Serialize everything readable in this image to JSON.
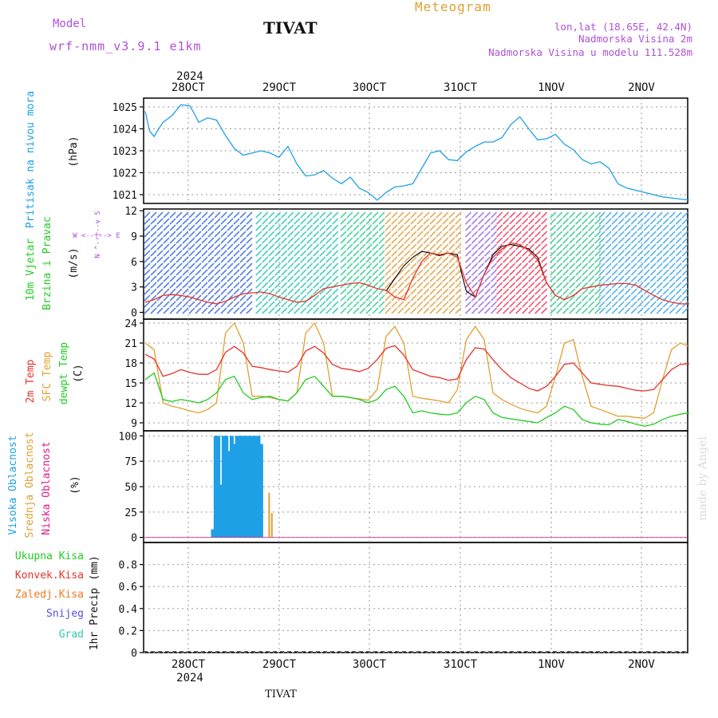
{
  "header": {
    "model_label": "Model",
    "model_name": "wrf-nmm_v3.9.1  e1km",
    "station": "TIVAT",
    "product": "Meteogram",
    "coords": "lon,lat (18.65E, 42.4N)",
    "elevation": "Nadmorska Visina 2m",
    "model_elevation": "Nadmorska Visina u modelu 111.528m"
  },
  "footer": {
    "station": "TIVAT",
    "credit": "made by Angel"
  },
  "time_axis": {
    "year_label": "2024",
    "days": [
      "28OCT",
      "29OCT",
      "30OCT",
      "31OCT",
      "1NOV",
      "2NOV"
    ],
    "x_range_days": [
      0,
      6.1
    ]
  },
  "colors": {
    "pressure": "#1ea0e6",
    "wind_gust": "#000000",
    "wind_speed": "#e8322a",
    "temp_2m": "#e8322a",
    "temp_sfc": "#e0a030",
    "temp_dew": "#22cc22",
    "cloud_high": "#1ea0e6",
    "cloud_mid": "#e0a030",
    "cloud_low": "#e01e8c",
    "precip_total": "#22cc22",
    "precip_conv": "#e8322a",
    "precip_frozen": "#f07a20",
    "precip_snow": "#5050e0",
    "precip_hail": "#30c8b0",
    "grid": "#999999",
    "purple": "#b050d8"
  },
  "chart_data": [
    {
      "type": "line",
      "panel": "pressure",
      "ylabel": "Pritisak na nivou mora",
      "unit": "(hPa)",
      "yticks": [
        "1021",
        "1022",
        "1023",
        "1024",
        "1025"
      ],
      "ylim": [
        1020.6,
        1025.4
      ],
      "series": [
        {
          "x": [
            0,
            0.05,
            0.1,
            0.15,
            0.2,
            0.3,
            0.4,
            0.5,
            0.55,
            0.6,
            0.7,
            0.8,
            0.9,
            1.0,
            1.1,
            1.2,
            1.3,
            1.4,
            1.5,
            1.6,
            1.7,
            1.8,
            1.9,
            2.0,
            2.1,
            2.2,
            2.3,
            2.4,
            2.5,
            2.6,
            2.7,
            2.8,
            2.9,
            3.0,
            3.1,
            3.2,
            3.3,
            3.4,
            3.5,
            3.6,
            3.7,
            3.8,
            3.9,
            4.0,
            4.1,
            4.2,
            4.3,
            4.4,
            4.5,
            4.6,
            4.7,
            4.8,
            4.9,
            5.0,
            5.1,
            5.2,
            5.3,
            5.4,
            5.5,
            5.6,
            5.7,
            5.8,
            5.9,
            6.0,
            6.1
          ],
          "y": [
            1024.8,
            1023.9,
            1023.65,
            1024.0,
            1024.3,
            1024.6,
            1025.1,
            1025.05,
            1024.7,
            1024.3,
            1024.5,
            1024.4,
            1023.7,
            1023.1,
            1022.8,
            1022.9,
            1023.0,
            1022.9,
            1022.7,
            1023.2,
            1022.4,
            1021.85,
            1021.9,
            1022.1,
            1021.75,
            1021.5,
            1021.8,
            1021.3,
            1021.1,
            1020.75,
            1021.1,
            1021.35,
            1021.4,
            1021.5,
            1022.2,
            1022.9,
            1023.0,
            1022.6,
            1022.55,
            1022.95,
            1023.2,
            1023.4,
            1023.4,
            1023.6,
            1024.2,
            1024.55,
            1024.0,
            1023.5,
            1023.55,
            1023.75,
            1023.3,
            1023.05,
            1022.6,
            1022.4,
            1022.5,
            1022.2,
            1021.5,
            1021.3,
            1021.2,
            1021.1,
            1021.0,
            1020.9,
            1020.85,
            1020.8,
            1020.75
          ]
        }
      ]
    },
    {
      "type": "line",
      "panel": "wind",
      "ylabel": [
        "10m Vjetar",
        "Brzina i Pravac"
      ],
      "unit": "(m/s)",
      "compass": "W <--|--> E",
      "compass_v": "N ^--|--v S",
      "yticks": [
        "0",
        "3",
        "6",
        "9",
        "12"
      ],
      "ylim": [
        -0.8,
        12.2
      ],
      "series": [
        {
          "name": "speed",
          "x": [
            0,
            0.1,
            0.2,
            0.3,
            0.4,
            0.5,
            0.6,
            0.7,
            0.8,
            0.9,
            1.0,
            1.1,
            1.2,
            1.3,
            1.4,
            1.5,
            1.6,
            1.7,
            1.8,
            1.9,
            2.0,
            2.1,
            2.2,
            2.3,
            2.4,
            2.5,
            2.6,
            2.7,
            2.8,
            2.9,
            3.0,
            3.1,
            3.2,
            3.3,
            3.4,
            3.5,
            3.6,
            3.7,
            3.8,
            3.9,
            4.0,
            4.1,
            4.2,
            4.3,
            4.4,
            4.5,
            4.6,
            4.7,
            4.8,
            4.9,
            5.0,
            5.1,
            5.2,
            5.3,
            5.4,
            5.5,
            5.6,
            5.7,
            5.8,
            5.9,
            6.0,
            6.1
          ],
          "y": [
            1.2,
            1.5,
            2.0,
            2.1,
            2.0,
            1.8,
            1.5,
            1.2,
            1.0,
            1.3,
            1.8,
            2.2,
            2.3,
            2.4,
            2.2,
            1.8,
            1.5,
            1.2,
            1.3,
            2.0,
            2.8,
            3.0,
            3.2,
            3.4,
            3.5,
            3.2,
            2.8,
            2.6,
            1.8,
            1.5,
            4.0,
            6.0,
            7.0,
            6.8,
            7.0,
            6.5,
            3.5,
            1.8,
            4.5,
            6.5,
            7.5,
            8.2,
            8.0,
            7.3,
            6.2,
            3.5,
            2.0,
            1.5,
            2.0,
            2.8,
            3.0,
            3.2,
            3.3,
            3.4,
            3.4,
            3.2,
            2.6,
            2.0,
            1.5,
            1.2,
            1.0,
            1.0
          ]
        },
        {
          "name": "gust",
          "x": [
            2.7,
            2.8,
            2.9,
            3.0,
            3.1,
            3.2,
            3.3,
            3.4,
            3.5,
            3.55,
            3.6,
            3.7,
            3.8,
            3.9,
            4.0,
            4.1,
            4.2,
            4.3,
            4.4,
            4.5,
            4.6
          ],
          "y": [
            2.5,
            4.0,
            5.5,
            6.5,
            7.2,
            7.0,
            6.7,
            7.0,
            6.8,
            4.5,
            2.5,
            1.8,
            4.5,
            6.8,
            7.8,
            8.0,
            7.8,
            7.5,
            6.5,
            3.5,
            2.0
          ]
        }
      ]
    },
    {
      "type": "line",
      "panel": "temperature",
      "ylabel": [
        "2m Temp",
        "SFC Temp",
        "dewpt Temp"
      ],
      "unit": "(C)",
      "yticks": [
        "9",
        "12",
        "15",
        "18",
        "21",
        "24"
      ],
      "ylim": [
        7.8,
        24.6
      ],
      "series": [
        {
          "name": "2m Temp",
          "x": [
            0,
            0.1,
            0.2,
            0.3,
            0.4,
            0.5,
            0.6,
            0.7,
            0.8,
            0.9,
            1.0,
            1.1,
            1.2,
            1.3,
            1.4,
            1.5,
            1.6,
            1.7,
            1.8,
            1.9,
            2.0,
            2.1,
            2.2,
            2.3,
            2.4,
            2.5,
            2.6,
            2.7,
            2.8,
            2.9,
            3.0,
            3.1,
            3.2,
            3.3,
            3.4,
            3.5,
            3.6,
            3.7,
            3.8,
            3.9,
            4.0,
            4.1,
            4.2,
            4.3,
            4.4,
            4.5,
            4.6,
            4.7,
            4.8,
            4.9,
            5.0,
            5.1,
            5.2,
            5.3,
            5.4,
            5.5,
            5.6,
            5.7,
            5.8,
            5.9,
            6.0,
            6.1
          ],
          "y": [
            19.3,
            18.6,
            16.0,
            16.4,
            17.0,
            16.6,
            16.3,
            16.3,
            17.0,
            19.6,
            20.5,
            19.5,
            17.5,
            17.3,
            17.0,
            16.8,
            16.6,
            17.5,
            19.8,
            20.5,
            19.5,
            17.8,
            17.2,
            17.0,
            16.7,
            17.2,
            18.5,
            20.2,
            20.6,
            19.2,
            17.0,
            16.5,
            16.0,
            15.8,
            15.4,
            15.6,
            18.5,
            20.3,
            20.1,
            18.5,
            17.0,
            15.8,
            15.0,
            14.2,
            13.8,
            14.5,
            16.0,
            17.8,
            18.0,
            16.5,
            15.0,
            14.8,
            14.6,
            14.5,
            14.2,
            13.9,
            13.8,
            14.0,
            15.5,
            17.0,
            17.8,
            17.9
          ]
        },
        {
          "name": "SFC Temp",
          "x": [
            0,
            0.1,
            0.2,
            0.3,
            0.4,
            0.5,
            0.6,
            0.7,
            0.8,
            0.9,
            1.0,
            1.1,
            1.2,
            1.3,
            1.4,
            1.5,
            1.6,
            1.7,
            1.8,
            1.9,
            2.0,
            2.1,
            2.2,
            2.3,
            2.4,
            2.5,
            2.6,
            2.7,
            2.8,
            2.9,
            3.0,
            3.1,
            3.2,
            3.3,
            3.4,
            3.5,
            3.6,
            3.7,
            3.8,
            3.9,
            4.0,
            4.1,
            4.2,
            4.3,
            4.4,
            4.5,
            4.6,
            4.7,
            4.8,
            4.9,
            5.0,
            5.1,
            5.2,
            5.3,
            5.4,
            5.5,
            5.6,
            5.7,
            5.8,
            5.9,
            6.0,
            6.1
          ],
          "y": [
            21.0,
            20.0,
            12.0,
            11.5,
            11.2,
            10.8,
            10.5,
            11.0,
            12.0,
            22.5,
            24.0,
            21.0,
            13.0,
            13.0,
            12.8,
            12.5,
            12.3,
            13.5,
            22.5,
            24.0,
            21.0,
            13.0,
            13.0,
            12.8,
            12.6,
            12.4,
            14.0,
            22.0,
            23.5,
            21.0,
            13.0,
            12.7,
            12.5,
            12.3,
            12.0,
            14.0,
            21.5,
            23.5,
            21.5,
            13.5,
            12.5,
            11.8,
            11.2,
            10.8,
            10.5,
            11.5,
            16.0,
            21.0,
            21.5,
            16.0,
            11.5,
            11.0,
            10.5,
            10.0,
            10.0,
            9.8,
            9.7,
            10.5,
            15.5,
            20.0,
            21.0,
            20.5
          ]
        },
        {
          "name": "dewpt Temp",
          "x": [
            0,
            0.1,
            0.2,
            0.3,
            0.4,
            0.5,
            0.6,
            0.7,
            0.8,
            0.9,
            1.0,
            1.1,
            1.2,
            1.3,
            1.4,
            1.5,
            1.6,
            1.7,
            1.8,
            1.9,
            2.0,
            2.1,
            2.2,
            2.3,
            2.4,
            2.5,
            2.6,
            2.7,
            2.8,
            2.9,
            3.0,
            3.1,
            3.2,
            3.3,
            3.4,
            3.5,
            3.6,
            3.7,
            3.8,
            3.9,
            4.0,
            4.1,
            4.2,
            4.3,
            4.4,
            4.5,
            4.6,
            4.7,
            4.8,
            4.9,
            5.0,
            5.1,
            5.2,
            5.3,
            5.4,
            5.5,
            5.6,
            5.7,
            5.8,
            5.9,
            6.0,
            6.1
          ],
          "y": [
            15.5,
            16.5,
            12.5,
            12.2,
            12.5,
            12.3,
            12.0,
            12.5,
            13.5,
            15.5,
            16.0,
            13.5,
            12.5,
            12.8,
            13.0,
            12.5,
            12.3,
            13.5,
            15.5,
            16.0,
            14.5,
            13.0,
            13.0,
            12.8,
            12.5,
            12.0,
            12.5,
            14.0,
            14.5,
            13.0,
            10.5,
            10.8,
            10.5,
            10.3,
            10.2,
            10.5,
            12.0,
            13.0,
            12.5,
            10.5,
            9.8,
            9.6,
            9.4,
            9.2,
            9.0,
            9.8,
            10.5,
            11.5,
            11.0,
            9.5,
            9.0,
            8.8,
            8.7,
            9.5,
            9.2,
            8.8,
            8.5,
            8.8,
            9.5,
            10.0,
            10.3,
            10.5
          ]
        }
      ]
    },
    {
      "type": "bar",
      "panel": "cloud",
      "ylabel": [
        "Visoka Oblacnost",
        "Srednja Oblacnost",
        "Niska Oblacnost"
      ],
      "unit": "(%)",
      "yticks": [
        "0",
        "25",
        "50",
        "75",
        "100"
      ],
      "ylim": [
        -5,
        105
      ],
      "series": [
        {
          "name": "Visoka Oblacnost",
          "x": [
            0.76,
            0.79,
            0.82,
            0.85,
            0.88,
            0.91,
            0.94,
            0.97,
            1.0,
            1.03,
            1.06,
            1.09,
            1.12,
            1.15,
            1.18,
            1.21,
            1.24,
            1.27,
            1.3
          ],
          "values": [
            8,
            100,
            100,
            52,
            100,
            100,
            85,
            100,
            92,
            100,
            100,
            100,
            100,
            100,
            100,
            100,
            100,
            100,
            92
          ]
        },
        {
          "name": "Srednja Oblacnost",
          "x": [
            1.39,
            1.42
          ],
          "values": [
            44,
            24
          ]
        },
        {
          "name": "Niska Oblacnost",
          "x": [],
          "values": []
        }
      ]
    },
    {
      "type": "bar",
      "panel": "precip",
      "ylabel": "1hr Precip",
      "unit": "(mm)",
      "legend": [
        "Ukupna Kisa",
        "Konvek.Kisa",
        "Zaledj.Kisa",
        "Snijeg",
        "Grad"
      ],
      "yticks": [
        "0",
        "0.2",
        "0.4",
        "0.6",
        "0.8"
      ],
      "ylim": [
        0,
        1.0
      ],
      "series": []
    }
  ]
}
